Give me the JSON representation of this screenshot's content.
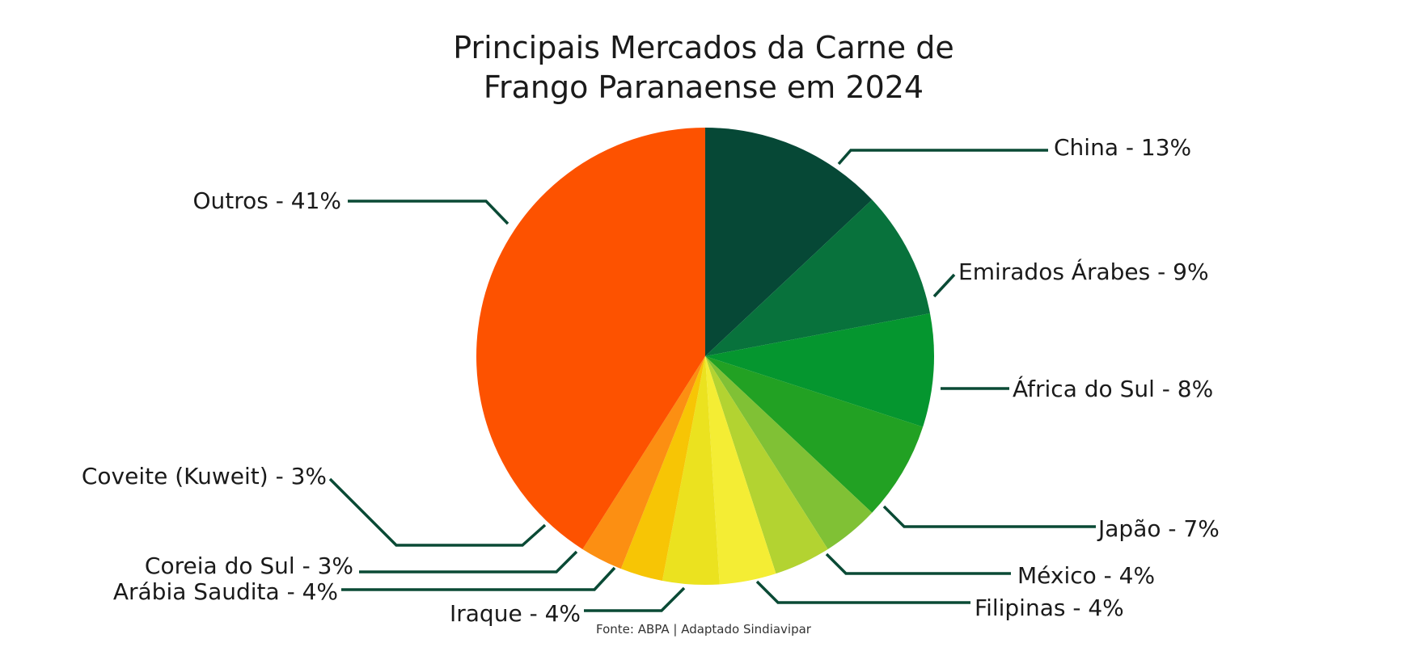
{
  "chart_data": {
    "type": "pie",
    "title_lines": [
      "Principais Mercados da Carne de",
      "Frango Paranaense em 2024"
    ],
    "source": "Fonte: ABPA | Adaptado Sindiavipar",
    "slices": [
      {
        "name": "China",
        "value": 13,
        "label": "China - 13%",
        "color": "#064836"
      },
      {
        "name": "Emirados Árabes",
        "value": 9,
        "label": "Emirados Árabes - 9%",
        "color": "#08723c"
      },
      {
        "name": "África do Sul",
        "value": 8,
        "label": "África do Sul - 8%",
        "color": "#05962f"
      },
      {
        "name": "Japão",
        "value": 7,
        "label": "Japão - 7%",
        "color": "#22a123"
      },
      {
        "name": "México",
        "value": 4,
        "label": "México - 4%",
        "color": "#80c135"
      },
      {
        "name": "Filipinas",
        "value": 4,
        "label": "Filipinas - 4%",
        "color": "#b3d331"
      },
      {
        "name": "Iraque",
        "value": 4,
        "label": "Iraque - 4%",
        "color": "#f4ed34"
      },
      {
        "name": "Arábia Saudita",
        "value": 4,
        "label": "Arábia Saudita - 4%",
        "color": "#ebe21f"
      },
      {
        "name": "Coreia do Sul",
        "value": 3,
        "label": "Coreia do Sul - 3%",
        "color": "#f7c505"
      },
      {
        "name": "Coveite (Kuweit)",
        "value": 3,
        "label": "Coveite (Kuweit) - 3%",
        "color": "#fc8f12"
      },
      {
        "name": "Outros",
        "value": 41,
        "label": "Outros - 41%",
        "color": "#fd5200"
      }
    ],
    "leader_color": "#0a4a35"
  }
}
